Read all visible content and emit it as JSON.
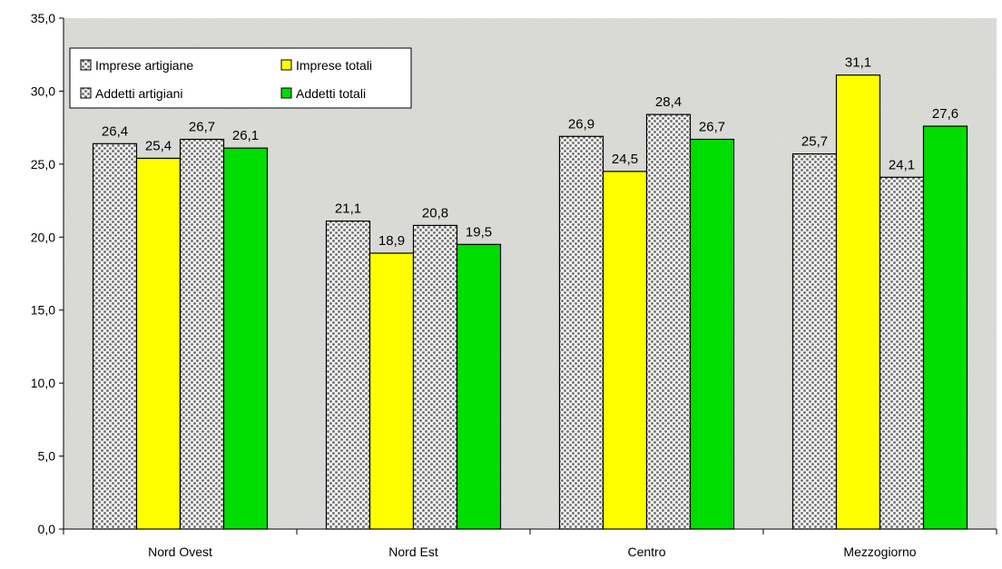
{
  "chart_data": {
    "type": "bar",
    "categories": [
      "Nord Ovest",
      "Nord Est",
      "Centro",
      "Mezzogiorno"
    ],
    "series": [
      {
        "name": "Imprese artigiane",
        "values": [
          26.4,
          21.1,
          26.9,
          25.7
        ],
        "labels": [
          "26,4",
          "21,1",
          "26,9",
          "25,7"
        ],
        "pattern": "dotted",
        "color": "#9a9a9a"
      },
      {
        "name": "Imprese totali",
        "values": [
          25.4,
          18.9,
          24.5,
          31.1
        ],
        "labels": [
          "25,4",
          "18,9",
          "24,5",
          "31,1"
        ],
        "pattern": "solid",
        "color": "#ffff00"
      },
      {
        "name": "Addetti artigiani",
        "values": [
          26.7,
          20.8,
          28.4,
          24.1
        ],
        "labels": [
          "26,7",
          "20,8",
          "28,4",
          "24,1"
        ],
        "pattern": "dotted",
        "color": "#9a9a9a"
      },
      {
        "name": "Addetti totali",
        "values": [
          26.1,
          19.5,
          26.7,
          27.6
        ],
        "labels": [
          "26,1",
          "19,5",
          "26,7",
          "27,6"
        ],
        "pattern": "solid",
        "color": "#00dd00"
      }
    ],
    "ylim": [
      0,
      35
    ],
    "yticks": [
      0,
      5,
      10,
      15,
      20,
      25,
      30,
      35
    ],
    "ytick_labels": [
      "0,0",
      "5,0",
      "10,0",
      "15,0",
      "20,0",
      "25,0",
      "30,0",
      "35,0"
    ],
    "legend_position": "top-left",
    "grid": false,
    "colors": {
      "plot_background": "#dcdcd8",
      "bar_outline": "#000000"
    }
  }
}
